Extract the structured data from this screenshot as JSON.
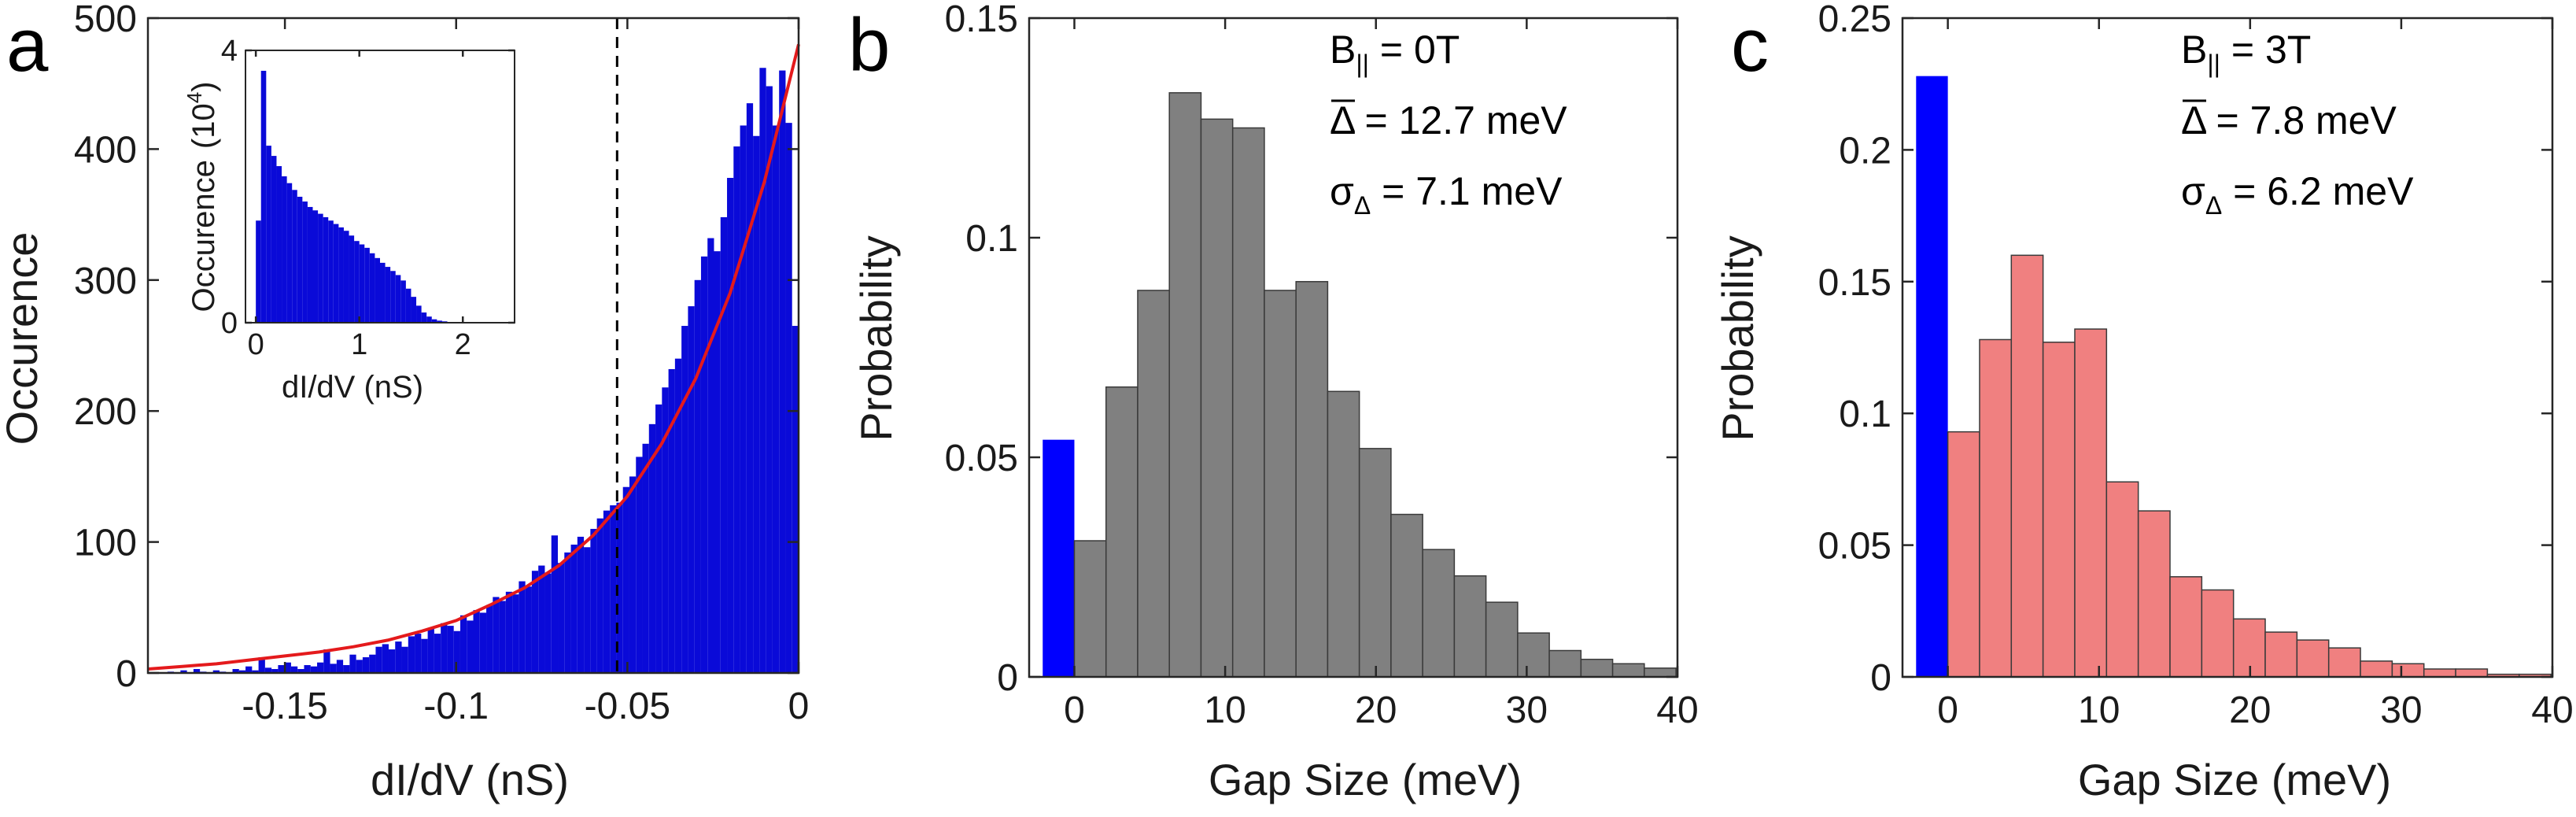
{
  "chart_data": [
    {
      "panel": "a",
      "type": "bar",
      "xlabel": "dI/dV (nS)",
      "ylabel": "Occurence",
      "xlim": [
        -0.19,
        0
      ],
      "ylim": [
        0,
        500
      ],
      "xticks": [
        -0.15,
        -0.1,
        -0.05,
        0
      ],
      "xtick_labels": [
        "-0.15",
        "-0.1",
        "-0.05",
        "0"
      ],
      "yticks": [
        0,
        100,
        200,
        300,
        400,
        500
      ],
      "ytick_labels": [
        "0",
        "100",
        "200",
        "300",
        "400",
        "500"
      ],
      "bin_width": 0.0019,
      "x": [
        -0.1881,
        -0.1862,
        -0.1843,
        -0.1824,
        -0.1805,
        -0.1786,
        -0.1767,
        -0.1748,
        -0.1729,
        -0.171,
        -0.1691,
        -0.1672,
        -0.1653,
        -0.1634,
        -0.1615,
        -0.1596,
        -0.1577,
        -0.1558,
        -0.1539,
        -0.152,
        -0.1501,
        -0.1482,
        -0.1463,
        -0.1444,
        -0.1425,
        -0.1406,
        -0.1387,
        -0.1368,
        -0.1349,
        -0.133,
        -0.1311,
        -0.1292,
        -0.1273,
        -0.1254,
        -0.1235,
        -0.1216,
        -0.1197,
        -0.1178,
        -0.1159,
        -0.114,
        -0.1121,
        -0.1102,
        -0.1083,
        -0.1064,
        -0.1045,
        -0.1026,
        -0.1007,
        -0.0988,
        -0.0969,
        -0.095,
        -0.0931,
        -0.0912,
        -0.0893,
        -0.0874,
        -0.0855,
        -0.0836,
        -0.0817,
        -0.0798,
        -0.0779,
        -0.076,
        -0.0741,
        -0.0722,
        -0.0703,
        -0.0684,
        -0.0665,
        -0.0646,
        -0.0627,
        -0.0608,
        -0.0589,
        -0.057,
        -0.0551,
        -0.0532,
        -0.0513,
        -0.0494,
        -0.0475,
        -0.0456,
        -0.0437,
        -0.0418,
        -0.0399,
        -0.038,
        -0.0361,
        -0.0342,
        -0.0323,
        -0.0304,
        -0.0285,
        -0.0266,
        -0.0247,
        -0.0228,
        -0.0209,
        -0.019,
        -0.0171,
        -0.0152,
        -0.0133,
        -0.0114,
        -0.0095,
        -0.0076,
        -0.0057,
        -0.0038,
        -0.0019
      ],
      "values": [
        0,
        0,
        1,
        0,
        2,
        0,
        3,
        1,
        0,
        2,
        1,
        0,
        3,
        2,
        5,
        2,
        12,
        4,
        3,
        6,
        8,
        5,
        3,
        6,
        5,
        8,
        18,
        7,
        10,
        6,
        14,
        10,
        12,
        14,
        20,
        22,
        18,
        24,
        20,
        28,
        30,
        26,
        34,
        30,
        38,
        36,
        32,
        44,
        40,
        48,
        46,
        52,
        58,
        55,
        62,
        60,
        70,
        66,
        78,
        82,
        76,
        105,
        84,
        92,
        98,
        104,
        96,
        110,
        118,
        124,
        128,
        130,
        142,
        150,
        165,
        175,
        190,
        205,
        218,
        232,
        240,
        265,
        280,
        300,
        318,
        332,
        322,
        348,
        378,
        402,
        418,
        435,
        410,
        462,
        448,
        418,
        460,
        420,
        265
      ],
      "fit_curve": {
        "color": "#e41a1c",
        "x": [
          -0.19,
          -0.18,
          -0.17,
          -0.16,
          -0.15,
          -0.14,
          -0.13,
          -0.12,
          -0.11,
          -0.1,
          -0.09,
          -0.08,
          -0.07,
          -0.06,
          -0.05,
          -0.04,
          -0.03,
          -0.02,
          -0.01,
          0
        ],
        "y": [
          3,
          5,
          7,
          10,
          13,
          16,
          20,
          25,
          32,
          40,
          52,
          65,
          82,
          105,
          135,
          175,
          225,
          290,
          375,
          480
        ]
      },
      "vline_x": -0.053,
      "bar_color": "#0a0ad8",
      "inset": {
        "type": "bar",
        "xlabel": "dI/dV (nS)",
        "ylabel": "Occurence",
        "ylabel_unit": "(10",
        "ylabel_unit_exp": "4",
        "ylabel_unit_close": ")",
        "xlim": [
          -0.1,
          2.5
        ],
        "ylim": [
          0,
          4
        ],
        "xticks": [
          0,
          1,
          2
        ],
        "xtick_labels": [
          "0",
          "1",
          "2"
        ],
        "yticks": [
          0,
          4
        ],
        "ytick_labels": [
          "0",
          "4"
        ],
        "bin_width": 0.05,
        "x": [
          0.0,
          0.05,
          0.1,
          0.15,
          0.2,
          0.25,
          0.3,
          0.35,
          0.4,
          0.45,
          0.5,
          0.55,
          0.6,
          0.65,
          0.7,
          0.75,
          0.8,
          0.85,
          0.9,
          0.95,
          1.0,
          1.05,
          1.1,
          1.15,
          1.2,
          1.25,
          1.3,
          1.35,
          1.4,
          1.45,
          1.5,
          1.55,
          1.6,
          1.65,
          1.7,
          1.75,
          1.8,
          1.85,
          1.9,
          1.95
        ],
        "values": [
          1.5,
          3.7,
          2.6,
          2.45,
          2.3,
          2.15,
          2.05,
          1.95,
          1.85,
          1.78,
          1.7,
          1.65,
          1.6,
          1.55,
          1.5,
          1.45,
          1.4,
          1.35,
          1.28,
          1.2,
          1.15,
          1.1,
          1.02,
          0.95,
          0.88,
          0.82,
          0.76,
          0.7,
          0.62,
          0.5,
          0.38,
          0.25,
          0.15,
          0.09,
          0.05,
          0.03,
          0.02,
          0.01,
          0.005,
          0.0
        ]
      }
    },
    {
      "panel": "b",
      "type": "bar",
      "xlabel": "Gap Size (meV)",
      "ylabel": "Probability",
      "xlim": [
        -3,
        40
      ],
      "ylim": [
        0,
        0.15
      ],
      "xticks": [
        0,
        10,
        20,
        30,
        40
      ],
      "xtick_labels": [
        "0",
        "10",
        "20",
        "30",
        "40"
      ],
      "yticks": [
        0,
        0.05,
        0.1,
        0.15
      ],
      "ytick_labels": [
        "0",
        "0.05",
        "0.1",
        "0.15"
      ],
      "bin_width": 2.1,
      "zero_bar": {
        "value": 0.054,
        "color": "#0000ff"
      },
      "x": [
        0,
        2.1,
        4.2,
        6.3,
        8.4,
        10.5,
        12.6,
        14.7,
        16.8,
        18.9,
        21.0,
        23.1,
        25.2,
        27.3,
        29.4,
        31.5,
        33.6,
        35.7,
        37.8
      ],
      "values": [
        0.031,
        0.066,
        0.088,
        0.133,
        0.127,
        0.125,
        0.088,
        0.09,
        0.065,
        0.052,
        0.037,
        0.029,
        0.023,
        0.017,
        0.01,
        0.006,
        0.004,
        0.003,
        0.002
      ],
      "bar_color": "#808080",
      "annotations": {
        "field": "B",
        "field_sub": "||",
        "field_value": " = 0T",
        "mean_symbol": "Δ",
        "mean_value": "  = 12.7 meV",
        "sigma_symbol": "σ",
        "sigma_sub": "Δ",
        "sigma_value": " =  7.1 meV"
      }
    },
    {
      "panel": "c",
      "type": "bar",
      "xlabel": "Gap Size (meV)",
      "ylabel": "Probability",
      "xlim": [
        -3,
        40
      ],
      "ylim": [
        0,
        0.25
      ],
      "xticks": [
        0,
        10,
        20,
        30,
        40
      ],
      "xtick_labels": [
        "0",
        "10",
        "20",
        "30",
        "40"
      ],
      "yticks": [
        0,
        0.05,
        0.1,
        0.15,
        0.2,
        0.25
      ],
      "ytick_labels": [
        "0",
        "0.05",
        "0.1",
        "0.15",
        "0.2",
        "0.25"
      ],
      "bin_width": 2.1,
      "zero_bar": {
        "value": 0.228,
        "color": "#0000ff"
      },
      "x": [
        0,
        2.1,
        4.2,
        6.3,
        8.4,
        10.5,
        12.6,
        14.7,
        16.8,
        18.9,
        21.0,
        23.1,
        25.2,
        27.3,
        29.4,
        31.5,
        33.6,
        35.7,
        37.8
      ],
      "values": [
        0.093,
        0.128,
        0.16,
        0.127,
        0.132,
        0.074,
        0.063,
        0.038,
        0.033,
        0.022,
        0.017,
        0.014,
        0.011,
        0.006,
        0.005,
        0.003,
        0.003,
        0.001,
        0.001
      ],
      "bar_color": "#f08080",
      "annotations": {
        "field": "B",
        "field_sub": "||",
        "field_value": " = 3T",
        "mean_symbol": "Δ",
        "mean_value": "  = 7.8 meV",
        "sigma_symbol": "σ",
        "sigma_sub": "Δ",
        "sigma_value": " =  6.2 meV"
      }
    }
  ]
}
